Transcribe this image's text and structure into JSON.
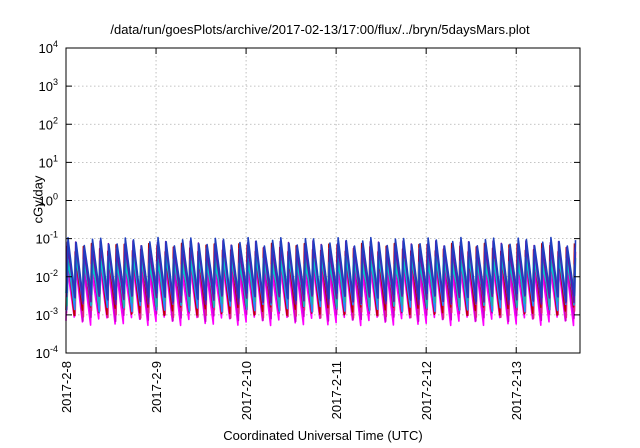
{
  "chart_data": {
    "type": "line",
    "title": "/data/run/goesPlots/archive/2017-02-13/17:00/flux/../bryn/5daysMars.plot",
    "xlabel": "Coordinated Universal Time (UTC)",
    "ylabel": "cGy/day",
    "yscale": "log",
    "ylim": [
      0.0001,
      10000
    ],
    "xlim": [
      "2017-02-08 00:00",
      "2017-02-13 17:00"
    ],
    "grid": true,
    "x_ticks": [
      "2017-2-8",
      "2017-2-9",
      "2017-2-10",
      "2017-2-11",
      "2017-2-12",
      "2017-2-13"
    ],
    "y_ticks": [
      {
        "base": "10",
        "exp": "-4"
      },
      {
        "base": "10",
        "exp": "-3"
      },
      {
        "base": "10",
        "exp": "-2"
      },
      {
        "base": "10",
        "exp": "-1"
      },
      {
        "base": "10",
        "exp": "0"
      },
      {
        "base": "10",
        "exp": "1"
      },
      {
        "base": "10",
        "exp": "2"
      },
      {
        "base": "10",
        "exp": "3"
      },
      {
        "base": "10",
        "exp": "4"
      }
    ],
    "cycles_per_day": 11,
    "series": [
      {
        "color": "#ff00ff",
        "peak": 0.02,
        "trough": 0.0007
      },
      {
        "color": "#cc00cc",
        "peak": 0.025,
        "trough": 0.0009
      },
      {
        "color": "#e0228a",
        "peak": 0.04,
        "trough": 0.0011
      },
      {
        "color": "#c00000",
        "peak": 0.06,
        "trough": 0.0013
      },
      {
        "color": "#1e90ff",
        "peak": 0.045,
        "trough": 0.0016
      },
      {
        "color": "#20b2aa",
        "peak": 0.035,
        "trough": 0.0022
      },
      {
        "color": "#00cccc",
        "peak": 0.028,
        "trough": 0.004
      },
      {
        "color": "#6a0dad",
        "peak": 0.07,
        "trough": 0.0025
      },
      {
        "color": "#1f3fbf",
        "peak": 0.085,
        "trough": 0.003
      }
    ]
  }
}
